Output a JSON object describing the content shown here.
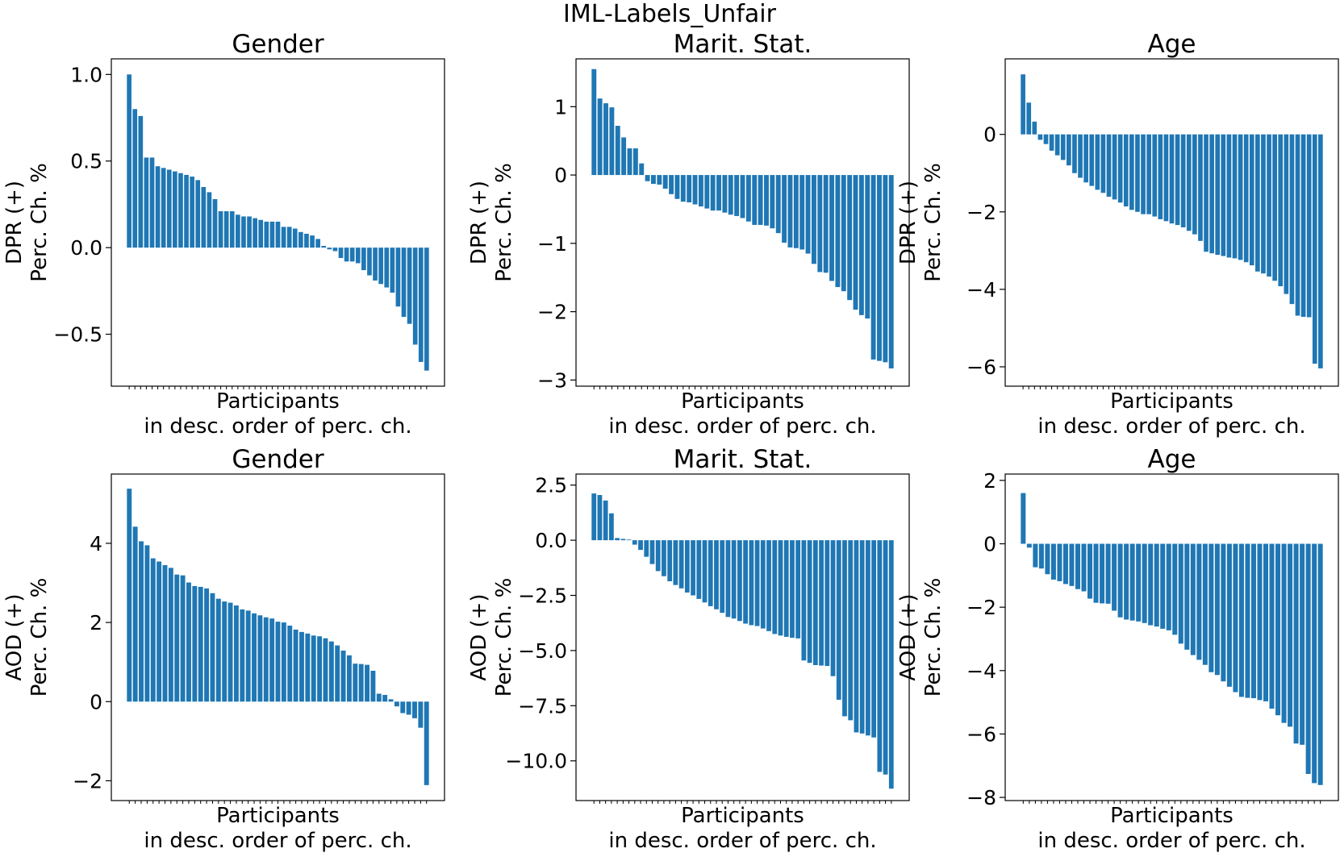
{
  "figure_title": "IML-Labels_Unfair",
  "bar_color": "#1f77b4",
  "chart_data": [
    {
      "type": "bar",
      "title": "Gender",
      "ylabel": [
        "DPR (+)",
        "Perc. Ch. %"
      ],
      "xlabel": [
        "Participants",
        "in desc. order of perc. ch."
      ],
      "ylim": [
        -0.8,
        1.09
      ],
      "yticks": [
        1.0,
        0.5,
        0.0,
        -0.5
      ],
      "ytick_labels": [
        "1.0",
        "0.5",
        "0.0",
        "−0.5"
      ],
      "values": [
        1.0,
        0.8,
        0.76,
        0.52,
        0.52,
        0.47,
        0.46,
        0.45,
        0.44,
        0.43,
        0.42,
        0.41,
        0.39,
        0.35,
        0.32,
        0.28,
        0.21,
        0.21,
        0.21,
        0.19,
        0.18,
        0.18,
        0.17,
        0.16,
        0.15,
        0.15,
        0.15,
        0.12,
        0.12,
        0.11,
        0.09,
        0.08,
        0.07,
        0.05,
        0.01,
        -0.01,
        -0.02,
        -0.06,
        -0.08,
        -0.08,
        -0.09,
        -0.13,
        -0.16,
        -0.19,
        -0.21,
        -0.23,
        -0.26,
        -0.34,
        -0.4,
        -0.44,
        -0.56,
        -0.66,
        -0.71
      ]
    },
    {
      "type": "bar",
      "title": "Marit. Stat.",
      "ylabel": [
        "DPR (+)",
        "Perc. Ch. %"
      ],
      "xlabel": [
        "Participants",
        "in desc. order of perc. ch."
      ],
      "ylim": [
        -3.09,
        1.7
      ],
      "yticks": [
        1,
        0,
        -1,
        -2,
        -3
      ],
      "ytick_labels": [
        "1",
        "0",
        "−1",
        "−2",
        "−3"
      ],
      "values": [
        1.55,
        1.12,
        1.05,
        0.99,
        0.72,
        0.55,
        0.39,
        0.39,
        0.17,
        -0.09,
        -0.13,
        -0.14,
        -0.2,
        -0.28,
        -0.35,
        -0.39,
        -0.4,
        -0.43,
        -0.46,
        -0.49,
        -0.52,
        -0.52,
        -0.55,
        -0.58,
        -0.6,
        -0.63,
        -0.68,
        -0.73,
        -0.73,
        -0.74,
        -0.78,
        -0.85,
        -0.99,
        -1.06,
        -1.07,
        -1.09,
        -1.15,
        -1.3,
        -1.42,
        -1.43,
        -1.55,
        -1.64,
        -1.7,
        -1.83,
        -1.97,
        -2.05,
        -2.1,
        -2.7,
        -2.72,
        -2.74,
        -2.83
      ]
    },
    {
      "type": "bar",
      "title": "Age",
      "ylabel": [
        "DPR (+)",
        "Perc. Ch. %"
      ],
      "xlabel": [
        "Participants",
        "in desc. order of perc. ch."
      ],
      "ylim": [
        -6.5,
        1.95
      ],
      "yticks": [
        0,
        -2,
        -4,
        -6
      ],
      "ytick_labels": [
        "0",
        "−2",
        "−4",
        "−6"
      ],
      "values": [
        1.55,
        0.82,
        0.33,
        -0.14,
        -0.25,
        -0.42,
        -0.54,
        -0.66,
        -0.8,
        -1.0,
        -1.12,
        -1.24,
        -1.33,
        -1.43,
        -1.51,
        -1.61,
        -1.68,
        -1.76,
        -1.86,
        -1.95,
        -2.0,
        -2.06,
        -2.06,
        -2.12,
        -2.19,
        -2.24,
        -2.3,
        -2.34,
        -2.4,
        -2.49,
        -2.58,
        -2.75,
        -3.03,
        -3.07,
        -3.11,
        -3.14,
        -3.18,
        -3.2,
        -3.24,
        -3.3,
        -3.38,
        -3.54,
        -3.59,
        -3.67,
        -3.78,
        -3.92,
        -4.12,
        -4.38,
        -4.68,
        -4.71,
        -4.72,
        -5.92,
        -6.04
      ]
    },
    {
      "type": "bar",
      "title": "Gender",
      "ylabel": [
        "AOD (+)",
        "Perc. Ch. %"
      ],
      "xlabel": [
        "Participants",
        "in desc. order of perc. ch."
      ],
      "ylim": [
        -2.5,
        5.75
      ],
      "yticks": [
        4,
        2,
        0,
        -2
      ],
      "ytick_labels": [
        "4",
        "2",
        "0",
        "−2"
      ],
      "values": [
        5.38,
        4.42,
        4.05,
        3.95,
        3.62,
        3.54,
        3.45,
        3.38,
        3.21,
        3.19,
        3.01,
        2.92,
        2.9,
        2.86,
        2.74,
        2.6,
        2.53,
        2.5,
        2.43,
        2.33,
        2.3,
        2.23,
        2.18,
        2.13,
        2.1,
        2.02,
        2.0,
        1.92,
        1.82,
        1.76,
        1.72,
        1.67,
        1.65,
        1.6,
        1.52,
        1.42,
        1.29,
        1.17,
        0.96,
        0.95,
        0.93,
        0.78,
        0.2,
        0.17,
        0.06,
        -0.12,
        -0.29,
        -0.33,
        -0.42,
        -0.66,
        -2.11
      ]
    },
    {
      "type": "bar",
      "title": "Marit. Stat.",
      "ylabel": [
        "AOD (+)",
        "Perc. Ch. %"
      ],
      "xlabel": [
        "Participants",
        "in desc. order of perc. ch."
      ],
      "ylim": [
        -11.8,
        3.0
      ],
      "yticks": [
        2.5,
        0.0,
        -2.5,
        -5.0,
        -7.5,
        -10.0
      ],
      "ytick_labels": [
        "2.5",
        "0.0",
        "−2.5",
        "−5.0",
        "−7.5",
        "−10.0"
      ],
      "values": [
        2.12,
        2.05,
        1.8,
        1.22,
        0.1,
        0.06,
        0.03,
        -0.2,
        -0.44,
        -0.75,
        -1.08,
        -1.4,
        -1.63,
        -1.86,
        -2.03,
        -2.18,
        -2.37,
        -2.5,
        -2.66,
        -2.82,
        -2.99,
        -3.13,
        -3.29,
        -3.48,
        -3.55,
        -3.66,
        -3.78,
        -3.85,
        -3.89,
        -4.0,
        -4.12,
        -4.25,
        -4.32,
        -4.38,
        -4.42,
        -4.45,
        -5.45,
        -5.56,
        -5.66,
        -5.68,
        -5.7,
        -6.16,
        -7.23,
        -7.98,
        -8.16,
        -8.71,
        -8.76,
        -8.85,
        -8.94,
        -10.5,
        -10.62,
        -11.26
      ]
    },
    {
      "type": "bar",
      "title": "Age",
      "ylabel": [
        "AOD (+)",
        "Perc. Ch. %"
      ],
      "xlabel": [
        "Participants",
        "in desc. order of perc. ch."
      ],
      "ylim": [
        -8.1,
        2.2
      ],
      "yticks": [
        2,
        0,
        -2,
        -4,
        -6,
        -8
      ],
      "ytick_labels": [
        "2",
        "0",
        "−2",
        "−4",
        "−6",
        "−8"
      ],
      "values": [
        1.6,
        -0.12,
        -0.74,
        -0.78,
        -0.96,
        -1.13,
        -1.18,
        -1.27,
        -1.33,
        -1.43,
        -1.5,
        -1.73,
        -1.86,
        -1.88,
        -1.89,
        -2.11,
        -2.32,
        -2.39,
        -2.42,
        -2.45,
        -2.5,
        -2.57,
        -2.61,
        -2.68,
        -2.73,
        -2.87,
        -3.15,
        -3.34,
        -3.51,
        -3.66,
        -3.82,
        -4.05,
        -4.14,
        -4.34,
        -4.51,
        -4.68,
        -4.83,
        -4.86,
        -4.87,
        -4.93,
        -4.97,
        -5.2,
        -5.41,
        -5.65,
        -5.77,
        -6.3,
        -6.34,
        -7.26,
        -7.55,
        -7.61
      ]
    }
  ]
}
